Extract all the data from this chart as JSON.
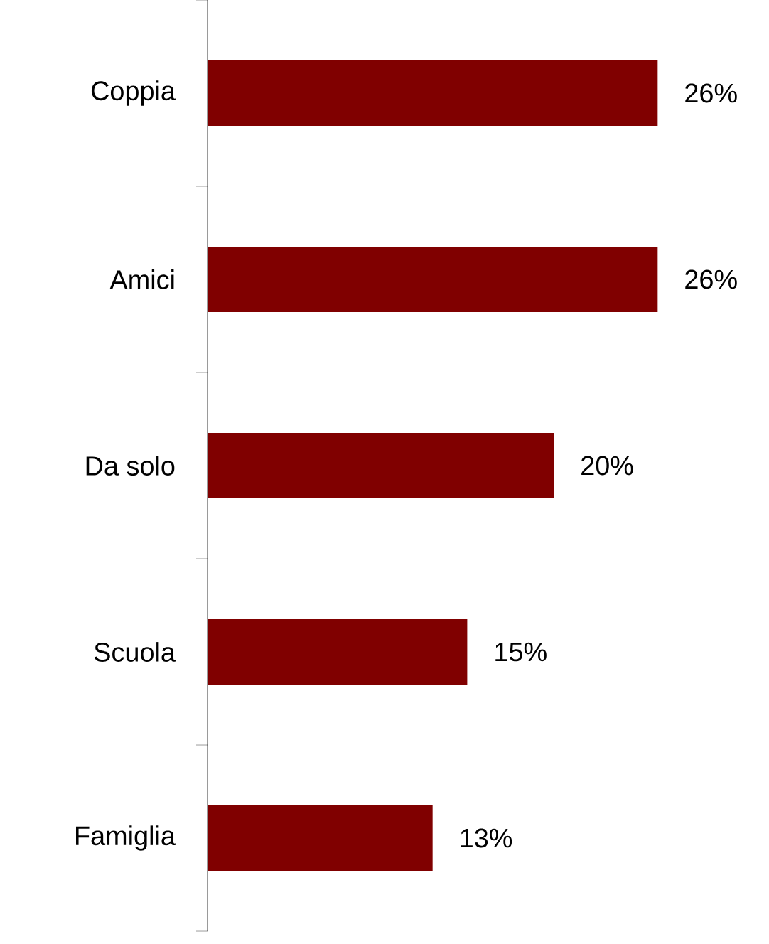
{
  "chart_data": {
    "type": "bar",
    "orientation": "horizontal",
    "categories": [
      "Coppia",
      "Amici",
      "Da solo",
      "Scuola",
      "Famiglia"
    ],
    "values": [
      26,
      26,
      20,
      15,
      13
    ],
    "value_labels": [
      "26%",
      "26%",
      "20%",
      "15%",
      "13%"
    ],
    "color": "#800000"
  }
}
